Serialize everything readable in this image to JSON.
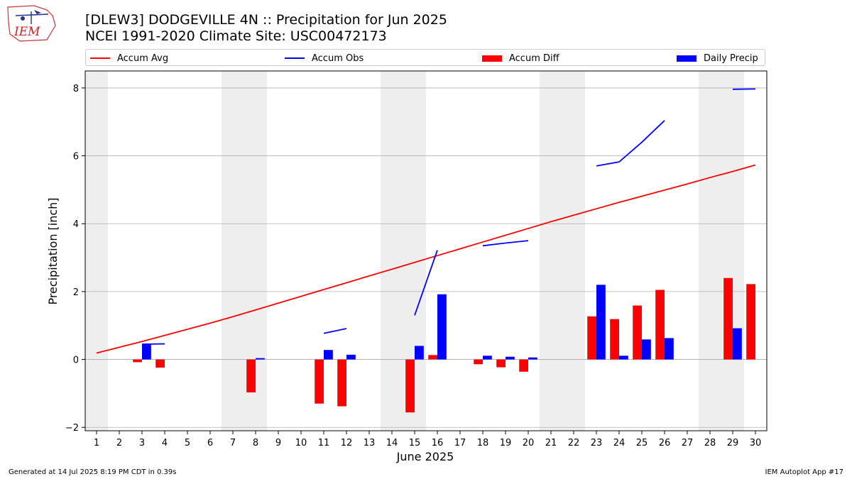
{
  "logo": {
    "text": "IEM"
  },
  "title_line1": "[DLEW3] DODGEVILLE 4N :: Precipitation for Jun 2025",
  "title_line2": "NCEI 1991-2020 Climate Site: USC00472173",
  "footer_left": "Generated at 14 Jul 2025 8:19 PM CDT in 0.39s",
  "footer_right": "IEM Autoplot App #17",
  "colors": {
    "accum_avg": "#ff0000",
    "accum_obs": "#0000ff",
    "accum_diff": "#ff0000",
    "daily_precip": "#0000ff",
    "weekend": "#eeeeee",
    "grid": "#b0b0b0"
  },
  "chart_data": {
    "type": "bar",
    "xlabel": "June 2025",
    "ylabel": "Precipitation [inch]",
    "xlim": [
      0.5,
      30.5
    ],
    "ylim": [
      -2.1,
      8.5
    ],
    "yticks": [
      -2,
      0,
      2,
      4,
      6,
      8
    ],
    "x": [
      1,
      2,
      3,
      4,
      5,
      6,
      7,
      8,
      9,
      10,
      11,
      12,
      13,
      14,
      15,
      16,
      17,
      18,
      19,
      20,
      21,
      22,
      23,
      24,
      25,
      26,
      27,
      28,
      29,
      30
    ],
    "weekend_days": [
      1,
      7,
      8,
      14,
      15,
      21,
      22,
      28,
      29
    ],
    "grid": "horizontal",
    "legend_position": "top",
    "legend": [
      "Accum Avg",
      "Accum Obs",
      "Accum Diff",
      "Daily Precip"
    ],
    "series": [
      {
        "name": "Accum Avg",
        "type": "line",
        "values": [
          0.19,
          0.36,
          0.53,
          0.71,
          0.89,
          1.07,
          1.26,
          1.46,
          1.66,
          1.86,
          2.06,
          2.26,
          2.46,
          2.66,
          2.86,
          3.06,
          3.26,
          3.46,
          3.66,
          3.86,
          4.06,
          4.25,
          4.44,
          4.63,
          4.81,
          4.99,
          5.17,
          5.36,
          5.54,
          5.73
        ]
      },
      {
        "name": "Accum Obs",
        "type": "line",
        "values": [
          null,
          null,
          0.45,
          0.46,
          null,
          null,
          null,
          null,
          null,
          null,
          0.77,
          0.91,
          null,
          null,
          1.3,
          3.22,
          null,
          3.35,
          3.43,
          3.5,
          null,
          null,
          5.7,
          5.82,
          6.4,
          7.04,
          null,
          null,
          7.96,
          7.97
        ]
      },
      {
        "name": "Accum Diff",
        "type": "bar",
        "values": [
          0,
          0,
          -0.08,
          -0.24,
          0,
          0,
          0,
          -0.97,
          0,
          0,
          -1.3,
          -1.38,
          0,
          0,
          -1.56,
          0.13,
          0,
          -0.14,
          -0.23,
          -0.36,
          0,
          0,
          1.27,
          1.19,
          1.59,
          2.05,
          0,
          0,
          2.4,
          2.22
        ]
      },
      {
        "name": "Daily Precip",
        "type": "bar",
        "values": [
          0,
          0,
          0.45,
          0,
          0,
          0,
          0,
          0.04,
          0,
          0,
          0.28,
          0.14,
          0,
          0,
          0.4,
          1.92,
          0,
          0.11,
          0.08,
          0.06,
          0,
          0,
          2.2,
          0.11,
          0.59,
          0.63,
          0,
          0,
          0.92,
          0.0
        ]
      }
    ]
  }
}
